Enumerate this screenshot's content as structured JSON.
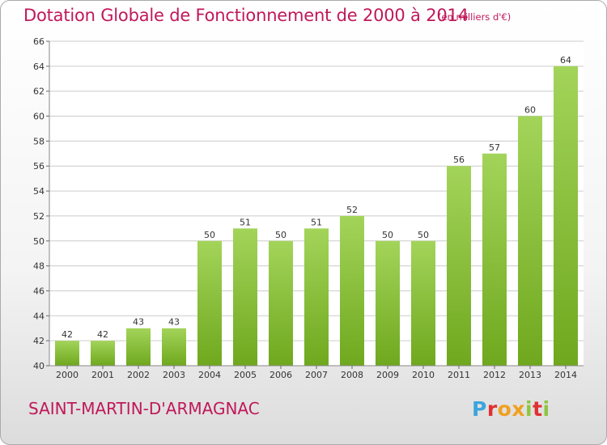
{
  "header": {
    "title": "Dotation Globale de Fonctionnement de 2000 à 2014",
    "subtitle": "(en milliers d'€)"
  },
  "footer": {
    "commune": "SAINT-MARTIN-D'ARMAGNAC",
    "logo": "Proxiti"
  },
  "colors": {
    "title": "#c0185a",
    "bar_light": "#a3d45a",
    "bar_dark": "#6fa81e",
    "grid": "#cccccc"
  },
  "chart_data": {
    "type": "bar",
    "title": "Dotation Globale de Fonctionnement de 2000 à 2014",
    "subtitle": "(en milliers d'€)",
    "xlabel": "",
    "ylabel": "",
    "ylim": [
      40,
      66
    ],
    "yticks": [
      40,
      42,
      44,
      46,
      48,
      50,
      52,
      54,
      56,
      58,
      60,
      62,
      64,
      66
    ],
    "grid": true,
    "categories": [
      "2000",
      "2001",
      "2002",
      "2003",
      "2004",
      "2005",
      "2006",
      "2007",
      "2008",
      "2009",
      "2010",
      "2011",
      "2012",
      "2013",
      "2014"
    ],
    "values": [
      42,
      42,
      43,
      43,
      50,
      51,
      50,
      51,
      52,
      50,
      50,
      56,
      57,
      60,
      64
    ]
  }
}
